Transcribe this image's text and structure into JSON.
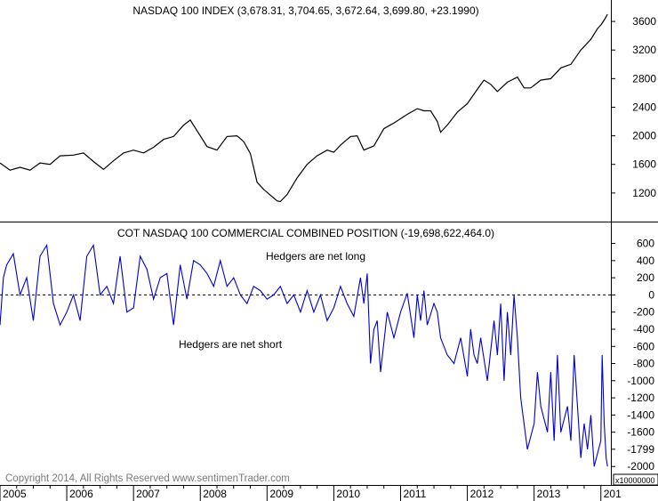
{
  "chart_data": [
    {
      "type": "line",
      "title": "NASDAQ 100 INDEX (3,678.31, 3,704.65, 3,672.64, 3,699.80, +23.1990)",
      "ylim": [
        800,
        3900
      ],
      "yticks": [
        1200,
        1600,
        2000,
        2400,
        2800,
        3200,
        3600
      ],
      "color": "#000000",
      "series": [
        {
          "x": [
            2005.0,
            2005.15,
            2005.3,
            2005.45,
            2005.6,
            2005.75,
            2005.9,
            2006.1,
            2006.25,
            2006.4,
            2006.55,
            2006.7,
            2006.85,
            2007.0,
            2007.15,
            2007.3,
            2007.45,
            2007.6,
            2007.75,
            2007.85,
            2008.0,
            2008.1,
            2008.25,
            2008.4,
            2008.55,
            2008.65,
            2008.75,
            2008.85,
            2008.95,
            2009.05,
            2009.15,
            2009.2,
            2009.3,
            2009.45,
            2009.6,
            2009.75,
            2009.9,
            2010.0,
            2010.1,
            2010.25,
            2010.35,
            2010.45,
            2010.6,
            2010.75,
            2010.9,
            2011.1,
            2011.25,
            2011.35,
            2011.45,
            2011.55,
            2011.6,
            2011.7,
            2011.85,
            2012.0,
            2012.15,
            2012.25,
            2012.35,
            2012.45,
            2012.6,
            2012.75,
            2012.85,
            2012.95,
            2013.1,
            2013.25,
            2013.4,
            2013.55,
            2013.7,
            2013.85,
            2013.95,
            2014.0,
            2014.05,
            2014.1
          ],
          "y": [
            1620,
            1520,
            1560,
            1520,
            1620,
            1600,
            1720,
            1730,
            1760,
            1640,
            1530,
            1650,
            1760,
            1800,
            1760,
            1840,
            1950,
            1990,
            2150,
            2220,
            2000,
            1850,
            1800,
            1990,
            2000,
            1920,
            1750,
            1350,
            1250,
            1170,
            1090,
            1080,
            1180,
            1410,
            1600,
            1720,
            1800,
            1770,
            1870,
            1990,
            2000,
            1800,
            1860,
            2100,
            2180,
            2300,
            2380,
            2350,
            2350,
            2200,
            2050,
            2150,
            2330,
            2450,
            2650,
            2780,
            2720,
            2620,
            2750,
            2820,
            2670,
            2670,
            2780,
            2800,
            2950,
            3000,
            3200,
            3350,
            3500,
            3550,
            3620,
            3700
          ]
        }
      ]
    },
    {
      "type": "line",
      "title": "COT NASDAQ 100 COMMERCIAL COMBINED POSITION (-19,698,622,464.0)",
      "ylim": [
        -2060,
        720
      ],
      "yticks": [
        600,
        400,
        200,
        0,
        -200,
        -400,
        -600,
        -800,
        -1000,
        -1200,
        -1400,
        -1600,
        -1799,
        -2000
      ],
      "unit_label": "x10000000",
      "zero_line": "dashed",
      "color": "#0000cc",
      "annotations": [
        {
          "text": "Hedgers are net long",
          "color": "#008000"
        },
        {
          "text": "Hedgers are net short",
          "color": "#ff0000"
        }
      ],
      "series": [
        {
          "x": [
            2005.0,
            2005.05,
            2005.1,
            2005.2,
            2005.3,
            2005.4,
            2005.5,
            2005.6,
            2005.7,
            2005.8,
            2005.9,
            2006.0,
            2006.1,
            2006.2,
            2006.3,
            2006.4,
            2006.5,
            2006.6,
            2006.7,
            2006.8,
            2006.9,
            2007.0,
            2007.1,
            2007.2,
            2007.3,
            2007.4,
            2007.5,
            2007.6,
            2007.7,
            2007.8,
            2007.9,
            2008.0,
            2008.1,
            2008.2,
            2008.3,
            2008.4,
            2008.5,
            2008.6,
            2008.7,
            2008.8,
            2008.9,
            2009.0,
            2009.1,
            2009.2,
            2009.3,
            2009.4,
            2009.5,
            2009.6,
            2009.7,
            2009.8,
            2009.9,
            2010.0,
            2010.1,
            2010.2,
            2010.3,
            2010.4,
            2010.45,
            2010.5,
            2010.55,
            2010.6,
            2010.65,
            2010.7,
            2010.8,
            2010.9,
            2011.0,
            2011.1,
            2011.2,
            2011.25,
            2011.3,
            2011.35,
            2011.4,
            2011.5,
            2011.55,
            2011.6,
            2011.7,
            2011.8,
            2011.9,
            2012.0,
            2012.05,
            2012.1,
            2012.15,
            2012.2,
            2012.3,
            2012.4,
            2012.45,
            2012.5,
            2012.55,
            2012.6,
            2012.65,
            2012.7,
            2012.75,
            2012.8,
            2012.9,
            2013.0,
            2013.05,
            2013.1,
            2013.2,
            2013.25,
            2013.3,
            2013.35,
            2013.4,
            2013.5,
            2013.55,
            2013.6,
            2013.7,
            2013.75,
            2013.8,
            2013.85,
            2013.9,
            2014.0,
            2014.02,
            2014.05,
            2014.08,
            2014.1
          ],
          "y": [
            -350,
            200,
            350,
            480,
            0,
            200,
            -300,
            450,
            580,
            -100,
            -350,
            -200,
            0,
            -300,
            450,
            580,
            0,
            100,
            -100,
            450,
            -200,
            -150,
            450,
            300,
            -50,
            200,
            250,
            -350,
            350,
            -50,
            400,
            350,
            250,
            100,
            400,
            100,
            200,
            0,
            -100,
            100,
            50,
            -50,
            0,
            100,
            -100,
            0,
            -200,
            50,
            -200,
            0,
            -300,
            -150,
            100,
            -100,
            -250,
            200,
            -100,
            250,
            -800,
            -400,
            -300,
            -900,
            -200,
            -500,
            -200,
            20,
            -500,
            0,
            -300,
            50,
            -350,
            -100,
            -200,
            -500,
            -700,
            -800,
            -500,
            -950,
            -400,
            -700,
            -800,
            -500,
            -1000,
            -300,
            -700,
            -100,
            -1000,
            -200,
            -700,
            0,
            -500,
            -1200,
            -1800,
            -1500,
            -900,
            -1300,
            -1600,
            -900,
            -1700,
            -700,
            -1600,
            -1300,
            -1700,
            -700,
            -1900,
            -1500,
            -1800,
            -1400,
            -2000,
            -1700,
            -700,
            -1500,
            -1900,
            -2000
          ]
        }
      ]
    },
    {
      "type": "xaxis",
      "xlim": [
        2005.0,
        2014.15
      ],
      "tick_labels": [
        "2005",
        "2006",
        "2007",
        "2008",
        "2009",
        "2010",
        "2011",
        "2012",
        "2013",
        "201"
      ]
    }
  ],
  "footer": {
    "copyright": "Copyright 2014, All Rights Reserved  www.sentimenTrader.com"
  }
}
